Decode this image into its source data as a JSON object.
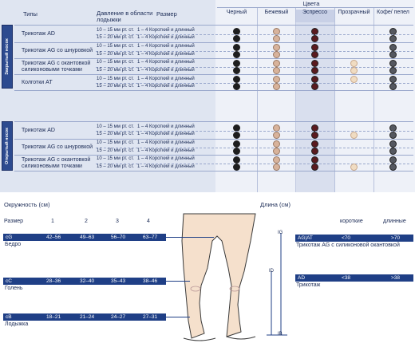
{
  "table": {
    "header": {
      "types": "Типы",
      "pressure": "Давление в области лодыжки",
      "size": "Размер",
      "colors": "Цвета"
    },
    "colors": [
      {
        "label": "Черный",
        "hex": "#1e1e1e"
      },
      {
        "label": "Бежевый",
        "hex": "#d8b39b"
      },
      {
        "label": "Эспрессо",
        "hex": "#5a1a1e"
      },
      {
        "label": "Прозрачный",
        "hex": "#f0dcc2"
      },
      {
        "label": "Кофе/ пепел",
        "hex": "#555860"
      }
    ],
    "sections": [
      {
        "label": "Закрытый носок",
        "groups": [
          {
            "type": "Трикотаж AD",
            "rows": [
              {
                "pressure": "10 – 15 мм рт. ст.",
                "size": "1 – 4 Короткий и длинный",
                "dots": [
                  1,
                  1,
                  1,
                  0,
                  1
                ]
              },
              {
                "pressure": "15 – 20 мм рт. ст.",
                "size": "1 – 4 Короткий и длинный",
                "dots": [
                  1,
                  1,
                  1,
                  0,
                  1
                ]
              }
            ]
          },
          {
            "type": "Трикотаж AG со шнуровкой",
            "rows": [
              {
                "pressure": "10 – 15 мм рт. ст.",
                "size": "1 – 4 Короткий и длинный",
                "dots": [
                  1,
                  1,
                  1,
                  0,
                  1
                ]
              },
              {
                "pressure": "15 – 20 мм рт. ст.",
                "size": "1 – 4 Короткий и длинный",
                "dots": [
                  1,
                  1,
                  1,
                  0,
                  1
                ]
              }
            ]
          },
          {
            "type": "Трикотаж AG с окантовкой силиконовыми точками",
            "rows": [
              {
                "pressure": "10 – 15 мм рт. ст.",
                "size": "1 – 4 Короткий и длинный",
                "dots": [
                  1,
                  1,
                  1,
                  1,
                  1
                ]
              },
              {
                "pressure": "15 – 20 мм рт. ст.",
                "size": "1 – 4 Короткий и длинный",
                "dots": [
                  1,
                  1,
                  1,
                  1,
                  1
                ]
              }
            ]
          },
          {
            "type": "Колготки AT",
            "rows": [
              {
                "pressure": "10 – 15 мм рт. ст.",
                "size": "1 – 4 Короткий и длинный",
                "dots": [
                  1,
                  1,
                  1,
                  1,
                  1
                ]
              },
              {
                "pressure": "15 – 20 мм рт. ст.",
                "size": "1 – 4 Короткий и длинный",
                "dots": [
                  1,
                  1,
                  1,
                  0,
                  1
                ]
              }
            ]
          }
        ]
      },
      {
        "label": "Открытый носок",
        "groups": [
          {
            "type": "Трикотаж AD",
            "rows": [
              {
                "pressure": "10 – 15 мм рт. ст.",
                "size": "1 – 4 Короткий и длинный",
                "dots": [
                  1,
                  1,
                  1,
                  0,
                  1
                ]
              },
              {
                "pressure": "15 – 20 мм рт. ст.",
                "size": "1 – 4 Короткий и длинный",
                "dots": [
                  1,
                  1,
                  1,
                  1,
                  1
                ]
              }
            ]
          },
          {
            "type": "Трикотаж AG со шнуровкой",
            "rows": [
              {
                "pressure": "10 – 15 мм рт. ст.",
                "size": "1 – 4 Короткий и длинный",
                "dots": [
                  1,
                  1,
                  1,
                  0,
                  1
                ]
              },
              {
                "pressure": "15 – 20 мм рт. ст.",
                "size": "1 – 4 Короткий и длинный",
                "dots": [
                  1,
                  1,
                  1,
                  0,
                  1
                ]
              }
            ]
          },
          {
            "type": "Трикотаж AG с окантовкой силиконовыми точками",
            "rows": [
              {
                "pressure": "10 – 15 мм рт. ст.",
                "size": "1 – 4 Короткий и длинный",
                "dots": [
                  1,
                  1,
                  1,
                  0,
                  1
                ]
              },
              {
                "pressure": "15 – 20 мм рт. ст.",
                "size": "1 – 4 Короткий и длинный",
                "dots": [
                  1,
                  1,
                  1,
                  1,
                  1
                ]
              }
            ]
          }
        ]
      }
    ]
  },
  "diagram": {
    "circ_title": "Окружность (см)",
    "len_title": "Длина (см)",
    "size_label": "Размер",
    "sizes": [
      "1",
      "2",
      "3",
      "4"
    ],
    "circ_rows": [
      {
        "code": "cG",
        "values": [
          "42–56",
          "49–63",
          "56–70",
          "63–77"
        ],
        "name": "Бедро"
      },
      {
        "code": "cC",
        "values": [
          "28–36",
          "32–40",
          "35–43",
          "38–46"
        ],
        "name": "Голень"
      },
      {
        "code": "cB",
        "values": [
          "18–21",
          "21–24",
          "24–27",
          "27–31"
        ],
        "name": "Лодыжка"
      }
    ],
    "len_cols": [
      "короткие",
      "длинные"
    ],
    "len_rows": [
      {
        "code": "AG|AT",
        "short": "<70",
        "long": ">70",
        "name": "Трикотаж AG с силиконовой окантовкой"
      },
      {
        "code": "AD",
        "short": "<38",
        "long": ">38",
        "name": "Трикотаж"
      }
    ],
    "markers": {
      "ig": "IG",
      "id": "ID",
      "ib": "IB"
    }
  }
}
